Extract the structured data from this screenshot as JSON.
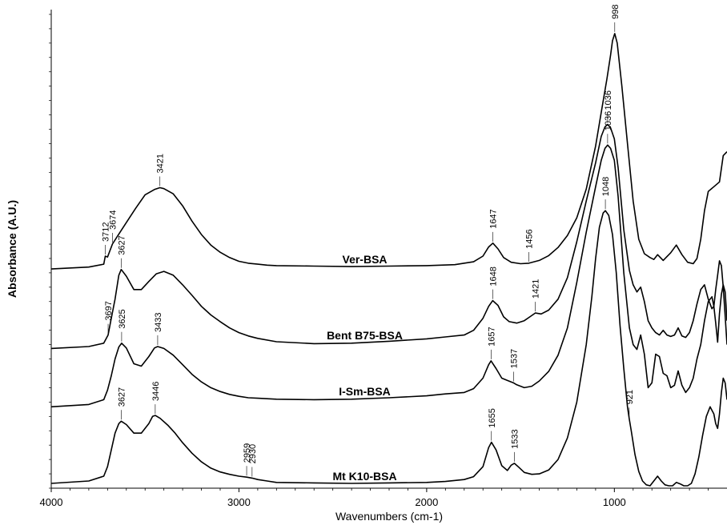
{
  "chart_data": {
    "type": "line",
    "title": "",
    "xlabel": "Wavenumbers (cm-1)",
    "ylabel": "Absorbance (A.U.)",
    "xlim": [
      4000,
      400
    ],
    "x_reversed": true,
    "x_ticks": [
      4000,
      3000,
      2000,
      1000
    ],
    "x_tick_labels": [
      "4000",
      "3000",
      "2000",
      "1000"
    ],
    "y_ticks_shown": false,
    "ylim": [
      0,
      100
    ],
    "line_color": "#000000",
    "series": [
      {
        "name": "Ver-BSA",
        "x": [
          4000,
          3800,
          3720,
          3712,
          3700,
          3674,
          3650,
          3600,
          3550,
          3500,
          3450,
          3421,
          3400,
          3350,
          3300,
          3250,
          3200,
          3150,
          3100,
          3050,
          3000,
          2950,
          2900,
          2850,
          2800,
          2600,
          2400,
          2200,
          2000,
          1850,
          1750,
          1700,
          1670,
          1647,
          1620,
          1590,
          1550,
          1500,
          1456,
          1400,
          1350,
          1300,
          1250,
          1200,
          1150,
          1100,
          1070,
          1040,
          1020,
          1010,
          998,
          985,
          960,
          930,
          900,
          870,
          840,
          810,
          790,
          770,
          740,
          700,
          670,
          640,
          610,
          580,
          560,
          540,
          520,
          500,
          470,
          440,
          420,
          400
        ],
        "values": [
          45.8,
          46.2,
          46.8,
          48.5,
          48.3,
          51.0,
          52.5,
          55.5,
          58.5,
          61.3,
          62.4,
          62.8,
          62.6,
          61.5,
          59.0,
          55.8,
          53.0,
          50.8,
          49.3,
          48.2,
          47.4,
          47.0,
          46.8,
          46.6,
          46.5,
          46.4,
          46.3,
          46.4,
          46.5,
          46.7,
          47.3,
          48.5,
          50.4,
          51.2,
          50.0,
          48.2,
          47.2,
          46.9,
          47.0,
          47.6,
          48.6,
          50.3,
          52.8,
          56.5,
          62.5,
          71.5,
          78.5,
          85.5,
          90.5,
          93.5,
          95.0,
          93.0,
          84.0,
          72.0,
          60.0,
          52.0,
          49.0,
          48.2,
          47.8,
          48.8,
          47.6,
          49.2,
          50.8,
          48.8,
          47.2,
          46.9,
          48.0,
          52.0,
          58.0,
          62.0,
          63.0,
          64.0,
          69.5,
          70.3
        ]
      },
      {
        "name": "Bent B75-BSA",
        "x": [
          4000,
          3800,
          3720,
          3697,
          3680,
          3660,
          3640,
          3627,
          3600,
          3560,
          3520,
          3480,
          3440,
          3400,
          3350,
          3300,
          3250,
          3200,
          3150,
          3100,
          3050,
          3000,
          2950,
          2900,
          2800,
          2600,
          2400,
          2200,
          2000,
          1900,
          1800,
          1750,
          1700,
          1670,
          1648,
          1620,
          1590,
          1560,
          1520,
          1480,
          1450,
          1421,
          1390,
          1350,
          1300,
          1250,
          1200,
          1150,
          1100,
          1070,
          1050,
          1036,
          1020,
          1000,
          980,
          950,
          920,
          900,
          880,
          860,
          840,
          820,
          800,
          780,
          760,
          740,
          720,
          700,
          680,
          660,
          640,
          620,
          600,
          580,
          560,
          540,
          520,
          500,
          480,
          470,
          460,
          450,
          440,
          430,
          420,
          410,
          400
        ],
        "values": [
          29.2,
          29.6,
          30.3,
          32.0,
          35.5,
          39.5,
          44.5,
          45.7,
          44.3,
          41.5,
          41.5,
          43.2,
          44.8,
          45.3,
          44.5,
          42.5,
          40.3,
          38.0,
          36.2,
          34.8,
          33.5,
          32.5,
          31.8,
          31.3,
          30.6,
          30.2,
          30.3,
          30.7,
          31.2,
          31.6,
          32.0,
          33.0,
          35.5,
          38.0,
          39.2,
          38.2,
          35.8,
          34.8,
          34.5,
          35.0,
          35.8,
          36.6,
          36.4,
          37.2,
          39.5,
          44.0,
          51.5,
          60.0,
          68.0,
          73.5,
          75.5,
          76.0,
          75.3,
          73.0,
          67.0,
          54.0,
          45.5,
          42.5,
          41.0,
          42.0,
          39.0,
          35.0,
          33.5,
          32.5,
          32.0,
          33.0,
          32.0,
          31.7,
          32.0,
          33.5,
          31.8,
          31.5,
          32.5,
          35.0,
          38.5,
          41.5,
          42.5,
          39.5,
          37.5,
          38.0,
          41.5,
          44.5,
          47.5,
          46.5,
          42.0,
          36.0,
          30.0
        ]
      },
      {
        "name": "I-Sm-BSA",
        "x": [
          4000,
          3800,
          3720,
          3700,
          3680,
          3660,
          3640,
          3625,
          3600,
          3560,
          3520,
          3480,
          3450,
          3433,
          3400,
          3350,
          3300,
          3250,
          3200,
          3150,
          3100,
          3050,
          3000,
          2950,
          2900,
          2800,
          2600,
          2400,
          2200,
          2000,
          1900,
          1800,
          1750,
          1700,
          1670,
          1657,
          1630,
          1600,
          1570,
          1550,
          1537,
          1520,
          1480,
          1440,
          1400,
          1350,
          1300,
          1250,
          1200,
          1150,
          1100,
          1070,
          1050,
          1036,
          1020,
          1000,
          980,
          950,
          920,
          900,
          880,
          860,
          840,
          820,
          800,
          780,
          760,
          740,
          720,
          700,
          680,
          660,
          640,
          620,
          600,
          580,
          560,
          540,
          520,
          500,
          480,
          470,
          460,
          450,
          440,
          430,
          420,
          410,
          400
        ],
        "values": [
          17.0,
          17.5,
          18.5,
          20.5,
          23.5,
          27.0,
          29.5,
          30.3,
          29.3,
          26.0,
          25.5,
          27.5,
          29.3,
          29.6,
          29.2,
          27.8,
          25.8,
          23.8,
          22.2,
          21.0,
          20.2,
          19.6,
          19.2,
          18.9,
          18.8,
          18.6,
          18.5,
          18.6,
          18.9,
          19.3,
          19.7,
          20.0,
          20.8,
          23.0,
          25.8,
          26.6,
          25.0,
          23.0,
          22.5,
          22.2,
          22.0,
          21.6,
          21.0,
          21.3,
          22.4,
          24.4,
          27.8,
          33.5,
          43.0,
          53.5,
          63.0,
          68.5,
          71.0,
          71.7,
          71.0,
          68.5,
          61.0,
          45.0,
          33.5,
          30.0,
          29.0,
          32.0,
          28.0,
          21.0,
          22.0,
          28.0,
          27.5,
          24.0,
          23.5,
          21.0,
          21.5,
          24.5,
          21.5,
          20.0,
          21.0,
          23.0,
          27.0,
          30.0,
          35.0,
          39.0,
          40.0,
          38.0,
          34.5,
          30.5,
          36.5,
          40.5,
          42.5,
          41.0,
          35.0
        ]
      },
      {
        "name": "Mt K10-BSA",
        "x": [
          4000,
          3800,
          3720,
          3700,
          3680,
          3660,
          3640,
          3627,
          3600,
          3560,
          3520,
          3480,
          3460,
          3446,
          3420,
          3380,
          3340,
          3300,
          3250,
          3200,
          3150,
          3100,
          3050,
          3000,
          2959,
          2930,
          2900,
          2850,
          2800,
          2600,
          2400,
          2200,
          2000,
          1900,
          1800,
          1750,
          1700,
          1670,
          1655,
          1630,
          1600,
          1570,
          1550,
          1533,
          1510,
          1480,
          1440,
          1400,
          1350,
          1300,
          1250,
          1200,
          1150,
          1120,
          1100,
          1080,
          1060,
          1048,
          1030,
          1010,
          990,
          970,
          950,
          930,
          921,
          910,
          890,
          870,
          850,
          830,
          810,
          790,
          770,
          750,
          730,
          710,
          690,
          670,
          650,
          630,
          610,
          590,
          570,
          550,
          530,
          510,
          490,
          470,
          460,
          450,
          440,
          430,
          420,
          410,
          400
        ],
        "values": [
          1.0,
          1.5,
          2.5,
          4.5,
          8.0,
          11.5,
          13.5,
          14.0,
          13.3,
          11.5,
          11.5,
          13.5,
          15.0,
          15.2,
          14.6,
          13.2,
          11.5,
          9.5,
          7.3,
          5.5,
          4.2,
          3.4,
          2.9,
          2.5,
          2.3,
          2.1,
          1.8,
          1.5,
          1.2,
          1.1,
          1.0,
          1.1,
          1.2,
          1.4,
          1.8,
          2.4,
          4.5,
          8.5,
          9.6,
          8.0,
          4.7,
          3.7,
          4.8,
          5.2,
          4.4,
          3.3,
          2.9,
          3.0,
          3.8,
          6.0,
          10.5,
          18.0,
          30.0,
          40.0,
          48.0,
          54.5,
          57.5,
          58.0,
          57.0,
          53.0,
          45.0,
          34.0,
          25.0,
          17.0,
          14.5,
          12.0,
          7.0,
          3.5,
          1.5,
          0.7,
          0.5,
          1.5,
          2.5,
          1.5,
          0.7,
          0.5,
          0.5,
          1.2,
          0.9,
          0.5,
          0.5,
          1.0,
          3.0,
          6.5,
          11.0,
          15.0,
          17.0,
          15.5,
          13.5,
          12.5,
          15.5,
          20.0,
          23.0,
          22.0,
          18.5
        ]
      }
    ],
    "peak_labels": [
      {
        "series": "Ver-BSA",
        "text": "3712",
        "x": 3712
      },
      {
        "series": "Ver-BSA",
        "text": "3674",
        "x": 3674
      },
      {
        "series": "Ver-BSA",
        "text": "3421",
        "x": 3421
      },
      {
        "series": "Ver-BSA",
        "text": "1647",
        "x": 1647
      },
      {
        "series": "Ver-BSA",
        "text": "1456",
        "x": 1456
      },
      {
        "series": "Ver-BSA",
        "text": "998",
        "x": 998
      },
      {
        "series": "Bent B75-BSA",
        "text": "3697",
        "x": 3697
      },
      {
        "series": "Bent B75-BSA",
        "text": "3627",
        "x": 3627
      },
      {
        "series": "Bent B75-BSA",
        "text": "1648",
        "x": 1648
      },
      {
        "series": "Bent B75-BSA",
        "text": "1421",
        "x": 1421
      },
      {
        "series": "Bent B75-BSA",
        "text": "1036",
        "x": 1036
      },
      {
        "series": "I-Sm-BSA",
        "text": "3625",
        "x": 3625
      },
      {
        "series": "I-Sm-BSA",
        "text": "3433",
        "x": 3433
      },
      {
        "series": "I-Sm-BSA",
        "text": "1657",
        "x": 1657
      },
      {
        "series": "I-Sm-BSA",
        "text": "1537",
        "x": 1537
      },
      {
        "series": "I-Sm-BSA",
        "text": "1036",
        "x": 1036
      },
      {
        "series": "Mt K10-BSA",
        "text": "3627",
        "x": 3627
      },
      {
        "series": "Mt K10-BSA",
        "text": "3446",
        "x": 3446
      },
      {
        "series": "Mt K10-BSA",
        "text": "2959",
        "x": 2959
      },
      {
        "series": "Mt K10-BSA",
        "text": "2930",
        "x": 2930
      },
      {
        "series": "Mt K10-BSA",
        "text": "1655",
        "x": 1655
      },
      {
        "series": "Mt K10-BSA",
        "text": "1533",
        "x": 1533
      },
      {
        "series": "Mt K10-BSA",
        "text": "1048",
        "x": 1048
      },
      {
        "series": "Mt K10-BSA",
        "text": "921",
        "x": 921
      }
    ]
  }
}
